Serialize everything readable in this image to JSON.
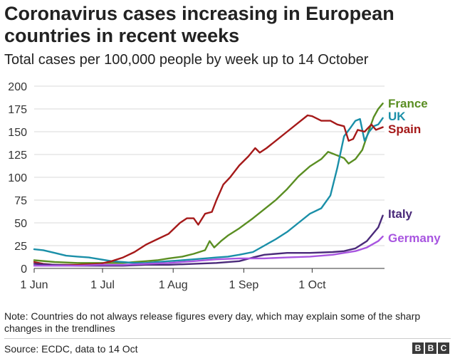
{
  "chart_data": {
    "type": "line",
    "title": "Coronavirus cases increasing in European countries in recent weeks",
    "subtitle": "Total cases per 100,000 people by week up to 14 October",
    "ylim": [
      0,
      200
    ],
    "yticks": [
      "0",
      "25",
      "50",
      "75",
      "100",
      "125",
      "150",
      "175",
      "200"
    ],
    "xticks": [
      {
        "date": "2020-06-01",
        "label": "1 Jun"
      },
      {
        "date": "2020-07-01",
        "label": "1 Jul"
      },
      {
        "date": "2020-08-01",
        "label": "1 Aug"
      },
      {
        "date": "2020-09-01",
        "label": "1 Sep"
      },
      {
        "date": "2020-10-01",
        "label": "1 Oct"
      }
    ],
    "grid": true,
    "legend": "labels at line ends",
    "series": [
      {
        "name": "France",
        "color": "#5a8e22",
        "points": [
          [
            "2020-06-01",
            9
          ],
          [
            "2020-06-10",
            7
          ],
          [
            "2020-06-20",
            6
          ],
          [
            "2020-06-30",
            6
          ],
          [
            "2020-07-05",
            6
          ],
          [
            "2020-07-10",
            6
          ],
          [
            "2020-07-15",
            7
          ],
          [
            "2020-07-20",
            8
          ],
          [
            "2020-07-25",
            9
          ],
          [
            "2020-07-30",
            11
          ],
          [
            "2020-08-05",
            13
          ],
          [
            "2020-08-10",
            16
          ],
          [
            "2020-08-15",
            20
          ],
          [
            "2020-08-17",
            30
          ],
          [
            "2020-08-19",
            23
          ],
          [
            "2020-08-22",
            30
          ],
          [
            "2020-08-25",
            36
          ],
          [
            "2020-08-30",
            44
          ],
          [
            "2020-09-05",
            55
          ],
          [
            "2020-09-10",
            65
          ],
          [
            "2020-09-15",
            75
          ],
          [
            "2020-09-20",
            87
          ],
          [
            "2020-09-25",
            101
          ],
          [
            "2020-09-30",
            112
          ],
          [
            "2020-10-05",
            120
          ],
          [
            "2020-10-08",
            128
          ],
          [
            "2020-10-10",
            126
          ],
          [
            "2020-10-12",
            124
          ],
          [
            "2020-10-15",
            121
          ],
          [
            "2020-10-17",
            115
          ],
          [
            "2020-10-20",
            120
          ],
          [
            "2020-10-23",
            130
          ],
          [
            "2020-10-26",
            152
          ],
          [
            "2020-10-28",
            166
          ],
          [
            "2020-10-30",
            175
          ],
          [
            "2020-11-01",
            181
          ]
        ]
      },
      {
        "name": "UK",
        "color": "#1a8fa8",
        "points": [
          [
            "2020-06-01",
            21
          ],
          [
            "2020-06-05",
            20
          ],
          [
            "2020-06-10",
            17
          ],
          [
            "2020-06-15",
            14
          ],
          [
            "2020-06-20",
            13
          ],
          [
            "2020-06-25",
            12
          ],
          [
            "2020-06-30",
            10
          ],
          [
            "2020-07-05",
            8
          ],
          [
            "2020-07-10",
            7
          ],
          [
            "2020-07-15",
            6
          ],
          [
            "2020-07-20",
            6
          ],
          [
            "2020-07-25",
            7
          ],
          [
            "2020-07-30",
            8
          ],
          [
            "2020-08-05",
            9
          ],
          [
            "2020-08-10",
            10
          ],
          [
            "2020-08-15",
            11
          ],
          [
            "2020-08-20",
            12
          ],
          [
            "2020-08-25",
            13
          ],
          [
            "2020-08-30",
            15
          ],
          [
            "2020-09-05",
            18
          ],
          [
            "2020-09-10",
            25
          ],
          [
            "2020-09-15",
            32
          ],
          [
            "2020-09-20",
            40
          ],
          [
            "2020-09-25",
            50
          ],
          [
            "2020-09-30",
            60
          ],
          [
            "2020-10-05",
            66
          ],
          [
            "2020-10-09",
            80
          ],
          [
            "2020-10-12",
            110
          ],
          [
            "2020-10-15",
            145
          ],
          [
            "2020-10-18",
            155
          ],
          [
            "2020-10-20",
            162
          ],
          [
            "2020-10-22",
            164
          ],
          [
            "2020-10-24",
            140
          ],
          [
            "2020-10-26",
            150
          ],
          [
            "2020-10-28",
            156
          ],
          [
            "2020-10-30",
            158
          ],
          [
            "2020-11-01",
            165
          ]
        ]
      },
      {
        "name": "Spain",
        "color": "#a51919",
        "points": [
          [
            "2020-06-01",
            7
          ],
          [
            "2020-06-05",
            5
          ],
          [
            "2020-06-10",
            4
          ],
          [
            "2020-06-20",
            4
          ],
          [
            "2020-06-30",
            5
          ],
          [
            "2020-07-05",
            8
          ],
          [
            "2020-07-10",
            12
          ],
          [
            "2020-07-15",
            18
          ],
          [
            "2020-07-20",
            26
          ],
          [
            "2020-07-25",
            32
          ],
          [
            "2020-07-30",
            38
          ],
          [
            "2020-08-04",
            50
          ],
          [
            "2020-08-07",
            55
          ],
          [
            "2020-08-10",
            55
          ],
          [
            "2020-08-12",
            48
          ],
          [
            "2020-08-15",
            60
          ],
          [
            "2020-08-18",
            62
          ],
          [
            "2020-08-20",
            75
          ],
          [
            "2020-08-23",
            92
          ],
          [
            "2020-08-26",
            100
          ],
          [
            "2020-08-30",
            113
          ],
          [
            "2020-09-03",
            123
          ],
          [
            "2020-09-06",
            132
          ],
          [
            "2020-09-08",
            127
          ],
          [
            "2020-09-11",
            132
          ],
          [
            "2020-09-15",
            140
          ],
          [
            "2020-09-20",
            150
          ],
          [
            "2020-09-25",
            160
          ],
          [
            "2020-09-29",
            168
          ],
          [
            "2020-10-01",
            167
          ],
          [
            "2020-10-05",
            162
          ],
          [
            "2020-10-09",
            162
          ],
          [
            "2020-10-12",
            158
          ],
          [
            "2020-10-15",
            156
          ],
          [
            "2020-10-17",
            140
          ],
          [
            "2020-10-19",
            142
          ],
          [
            "2020-10-21",
            152
          ],
          [
            "2020-10-24",
            150
          ],
          [
            "2020-10-27",
            158
          ],
          [
            "2020-10-29",
            152
          ],
          [
            "2020-11-01",
            155
          ]
        ]
      },
      {
        "name": "Italy",
        "color": "#4a2a7a",
        "points": [
          [
            "2020-06-01",
            5
          ],
          [
            "2020-06-10",
            4
          ],
          [
            "2020-06-20",
            3
          ],
          [
            "2020-06-30",
            3
          ],
          [
            "2020-07-10",
            3
          ],
          [
            "2020-07-20",
            4
          ],
          [
            "2020-07-30",
            4
          ],
          [
            "2020-08-10",
            5
          ],
          [
            "2020-08-20",
            6
          ],
          [
            "2020-08-30",
            8
          ],
          [
            "2020-09-05",
            12
          ],
          [
            "2020-09-10",
            15
          ],
          [
            "2020-09-20",
            17
          ],
          [
            "2020-09-30",
            17
          ],
          [
            "2020-10-10",
            18
          ],
          [
            "2020-10-15",
            19
          ],
          [
            "2020-10-20",
            22
          ],
          [
            "2020-10-25",
            30
          ],
          [
            "2020-10-30",
            45
          ],
          [
            "2020-11-01",
            58
          ]
        ]
      },
      {
        "name": "Germany",
        "color": "#a855e0",
        "points": [
          [
            "2020-06-01",
            3
          ],
          [
            "2020-06-10",
            3
          ],
          [
            "2020-06-20",
            3
          ],
          [
            "2020-06-30",
            4
          ],
          [
            "2020-07-10",
            4
          ],
          [
            "2020-07-20",
            5
          ],
          [
            "2020-07-30",
            6
          ],
          [
            "2020-08-10",
            8
          ],
          [
            "2020-08-20",
            10
          ],
          [
            "2020-08-30",
            11
          ],
          [
            "2020-09-10",
            11
          ],
          [
            "2020-09-20",
            12
          ],
          [
            "2020-09-30",
            13
          ],
          [
            "2020-10-10",
            15
          ],
          [
            "2020-10-15",
            17
          ],
          [
            "2020-10-20",
            19
          ],
          [
            "2020-10-25",
            23
          ],
          [
            "2020-10-30",
            30
          ],
          [
            "2020-11-01",
            35
          ]
        ]
      }
    ]
  },
  "note": "Note: Countries do not always release figures every day, which may explain some of the sharp changes in the trendlines",
  "source": "Source: ECDC, data to 14 Oct",
  "logo": [
    "B",
    "B",
    "C"
  ]
}
